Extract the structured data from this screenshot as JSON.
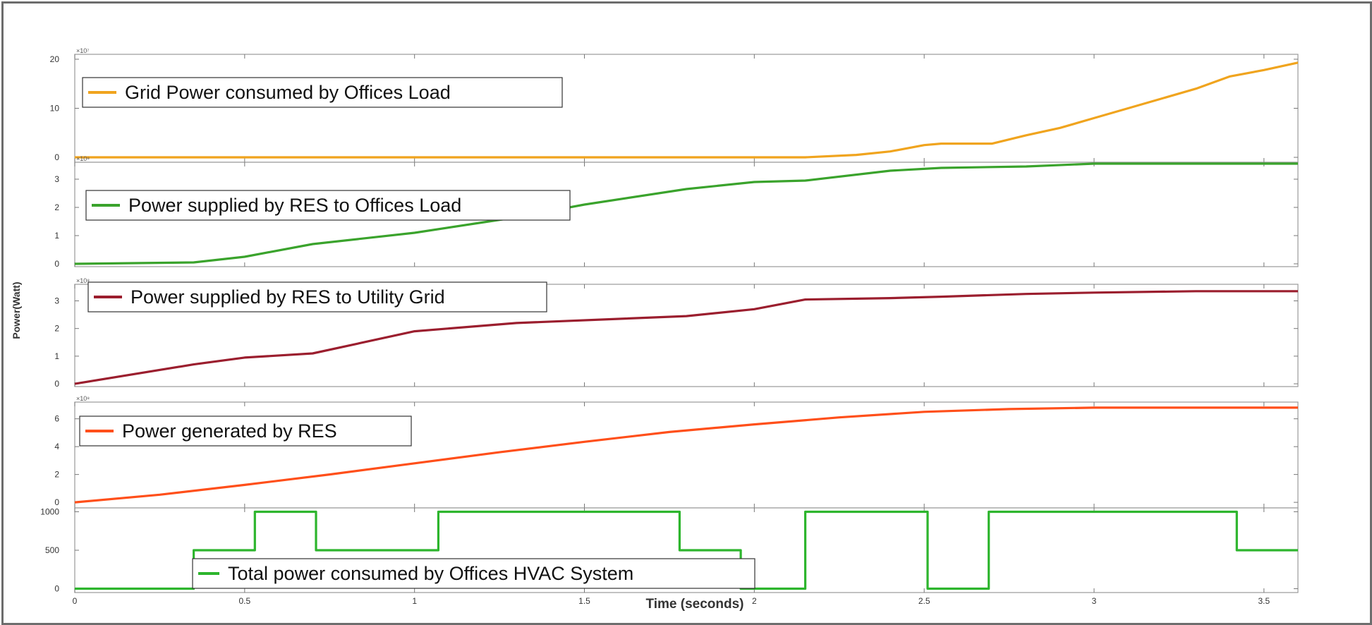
{
  "chart_data": {
    "type": "line",
    "ylabel": "Power(Watt)",
    "xlabel": "Time (seconds)",
    "x_ticks": [
      "0",
      "0.5",
      "1",
      "1.5",
      "2",
      "2.5",
      "3",
      "3.5"
    ],
    "xlim": [
      0,
      3.6
    ],
    "grid": false,
    "panels": [
      {
        "exponent": "×10⁷",
        "ylim": [
          -1,
          21
        ],
        "y_ticks": [
          "0",
          "10",
          "20"
        ],
        "y_tick_values": [
          0,
          10,
          20
        ],
        "series": [
          {
            "name": "Grid Power consumed by Offices Load",
            "color": "#f0a41e",
            "x": [
              0,
              0.5,
              1,
              1.5,
              2,
              2.15,
              2.3,
              2.4,
              2.5,
              2.55,
              2.6,
              2.7,
              2.8,
              2.9,
              3,
              3.1,
              3.2,
              3.3,
              3.4,
              3.5,
              3.6
            ],
            "y": [
              0,
              0,
              0,
              0,
              0,
              0,
              0.5,
              1.2,
              2.5,
              2.8,
              2.8,
              2.8,
              4.5,
              6,
              8,
              10,
              12,
              14,
              16.5,
              17.8,
              19.3
            ]
          }
        ]
      },
      {
        "exponent": "×10⁸",
        "ylim": [
          -0.1,
          3.6
        ],
        "y_ticks": [
          "0",
          "1",
          "2",
          "3"
        ],
        "y_tick_values": [
          0,
          1,
          2,
          3
        ],
        "series": [
          {
            "name": "Power supplied by RES to Offices Load",
            "color": "#3aa32c",
            "x": [
              0,
              0.35,
              0.5,
              0.7,
              1,
              1.3,
              1.5,
              1.8,
              2,
              2.15,
              2.4,
              2.55,
              2.8,
              3,
              3.3,
              3.6
            ],
            "y": [
              0,
              0.05,
              0.25,
              0.7,
              1.1,
              1.65,
              2.1,
              2.65,
              2.9,
              2.95,
              3.3,
              3.4,
              3.45,
              3.55,
              3.55,
              3.55
            ]
          }
        ]
      },
      {
        "exponent": "×10⁸",
        "ylim": [
          -0.1,
          3.6
        ],
        "y_ticks": [
          "0",
          "1",
          "2",
          "3"
        ],
        "y_tick_values": [
          0,
          1,
          2,
          3
        ],
        "series": [
          {
            "name": "Power supplied by RES to Utility Grid",
            "color": "#9b1e2e",
            "x": [
              0,
              0.35,
              0.5,
              0.7,
              1,
              1.3,
              1.8,
              2,
              2.15,
              2.4,
              2.55,
              2.8,
              3,
              3.3,
              3.6
            ],
            "y": [
              0,
              0.7,
              0.95,
              1.1,
              1.9,
              2.2,
              2.45,
              2.7,
              3.05,
              3.1,
              3.15,
              3.25,
              3.3,
              3.35,
              3.35
            ]
          }
        ]
      },
      {
        "exponent": "×10⁸",
        "ylim": [
          -0.4,
          7.2
        ],
        "y_ticks": [
          "0",
          "2",
          "4",
          "6"
        ],
        "y_tick_values": [
          0,
          2,
          4,
          6
        ],
        "series": [
          {
            "name": "Power generated by RES",
            "color": "#ff4f1a",
            "x": [
              0,
              0.25,
              0.5,
              0.75,
              1,
              1.25,
              1.5,
              1.75,
              2,
              2.25,
              2.5,
              2.75,
              3,
              3.25,
              3.6
            ],
            "y": [
              0,
              0.55,
              1.25,
              2.0,
              2.8,
              3.6,
              4.35,
              5.05,
              5.6,
              6.1,
              6.5,
              6.7,
              6.8,
              6.8,
              6.8
            ]
          }
        ]
      },
      {
        "exponent": "",
        "ylim": [
          -50,
          1050
        ],
        "y_ticks": [
          "0",
          "500",
          "1000"
        ],
        "y_tick_values": [
          0,
          500,
          1000
        ],
        "series": [
          {
            "name": "Total power consumed by Offices HVAC System",
            "color": "#2db52d",
            "x": [
              0,
              0.35,
              0.35,
              0.53,
              0.53,
              0.71,
              0.71,
              1.07,
              1.07,
              1.78,
              1.78,
              1.96,
              1.96,
              2.15,
              2.15,
              2.51,
              2.51,
              2.69,
              2.69,
              3.42,
              3.42,
              3.6
            ],
            "y": [
              0,
              0,
              500,
              500,
              1000,
              1000,
              500,
              500,
              1000,
              1000,
              500,
              500,
              0,
              0,
              1000,
              1000,
              0,
              0,
              1000,
              1000,
              500,
              500
            ]
          }
        ]
      }
    ]
  }
}
